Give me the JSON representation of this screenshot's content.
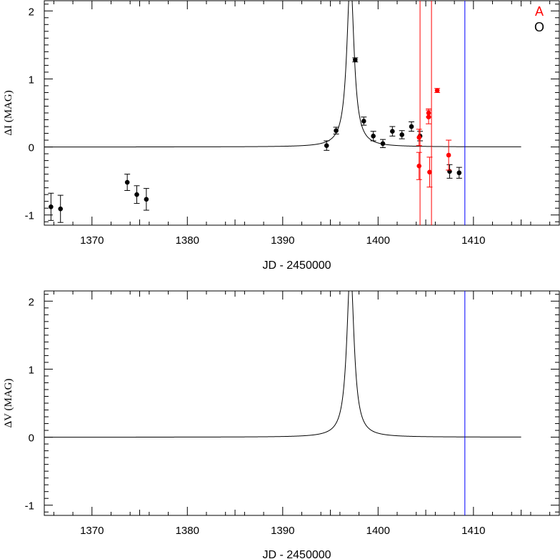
{
  "chart_data": [
    {
      "type": "scatter",
      "xlabel": "JD - 2450000",
      "ylabel": "ΔI (MAG)",
      "xlim": [
        1365,
        1419
      ],
      "ylim": [
        -1.15,
        2.15
      ],
      "xticks": [
        1370,
        1380,
        1390,
        1400,
        1410
      ],
      "yticks": [
        -1,
        0,
        1,
        2
      ],
      "legend": {
        "placement": "top-right",
        "entries": [
          {
            "label": "A",
            "color": "#ff0000"
          },
          {
            "label": "O",
            "color": "#000000"
          }
        ]
      },
      "model_curve": {
        "peak_x": 1397.1,
        "width": 0.45,
        "baseline": 0,
        "x_range": [
          1365,
          1415
        ]
      },
      "vlines": [
        {
          "x": 1409.1,
          "color": "#0000ff"
        }
      ],
      "series": [
        {
          "color": "#000000",
          "points": [
            {
              "x": 1365.7,
              "y": -0.88,
              "err": 0.2
            },
            {
              "x": 1366.7,
              "y": -0.91,
              "err": 0.2
            },
            {
              "x": 1373.7,
              "y": -0.52,
              "err": 0.12
            },
            {
              "x": 1374.7,
              "y": -0.7,
              "err": 0.13
            },
            {
              "x": 1375.7,
              "y": -0.77,
              "err": 0.16
            },
            {
              "x": 1394.6,
              "y": 0.02,
              "err": 0.07
            },
            {
              "x": 1395.6,
              "y": 0.24,
              "err": 0.05
            },
            {
              "x": 1397.6,
              "y": 1.28,
              "err": 0.03
            },
            {
              "x": 1398.5,
              "y": 0.38,
              "err": 0.06
            },
            {
              "x": 1399.5,
              "y": 0.16,
              "err": 0.07
            },
            {
              "x": 1400.5,
              "y": 0.05,
              "err": 0.06
            },
            {
              "x": 1401.5,
              "y": 0.23,
              "err": 0.07
            },
            {
              "x": 1402.5,
              "y": 0.18,
              "err": 0.06
            },
            {
              "x": 1403.5,
              "y": 0.3,
              "err": 0.07
            },
            {
              "x": 1404.4,
              "y": 0.16,
              "err": 0.07
            },
            {
              "x": 1407.5,
              "y": -0.36,
              "err": 0.1
            },
            {
              "x": 1408.5,
              "y": -0.38,
              "err": 0.08
            }
          ]
        },
        {
          "color": "#ff0000",
          "points": [
            {
              "x": 1404.3,
              "y": -0.28,
              "err": 0.2
            },
            {
              "x": 1404.3,
              "y": 0.14,
              "err": 0.12
            },
            {
              "x": 1405.3,
              "y": 0.5,
              "err": 0.06
            },
            {
              "x": 1405.3,
              "y": 0.44,
              "err": 0.1
            },
            {
              "x": 1405.4,
              "y": -0.37,
              "err": 0.22
            },
            {
              "x": 1406.2,
              "y": 0.83,
              "err": 0.03
            },
            {
              "x": 1407.4,
              "y": -0.12,
              "err": 0.22
            }
          ],
          "full_range_bars": [
            {
              "x": 1404.4,
              "y": 0.0
            },
            {
              "x": 1405.6,
              "y": 0.6
            }
          ]
        }
      ]
    },
    {
      "type": "line",
      "xlabel": "JD - 2450000",
      "ylabel": "ΔV (MAG)",
      "xlim": [
        1365,
        1419
      ],
      "ylim": [
        -1.15,
        2.15
      ],
      "xticks": [
        1370,
        1380,
        1390,
        1400,
        1410
      ],
      "yticks": [
        -1,
        0,
        1,
        2
      ],
      "model_curve": {
        "peak_x": 1397.1,
        "width": 0.45,
        "baseline": 0,
        "x_range": [
          1365,
          1415
        ]
      },
      "vlines": [
        {
          "x": 1409.1,
          "color": "#0000ff"
        }
      ],
      "series": []
    }
  ]
}
